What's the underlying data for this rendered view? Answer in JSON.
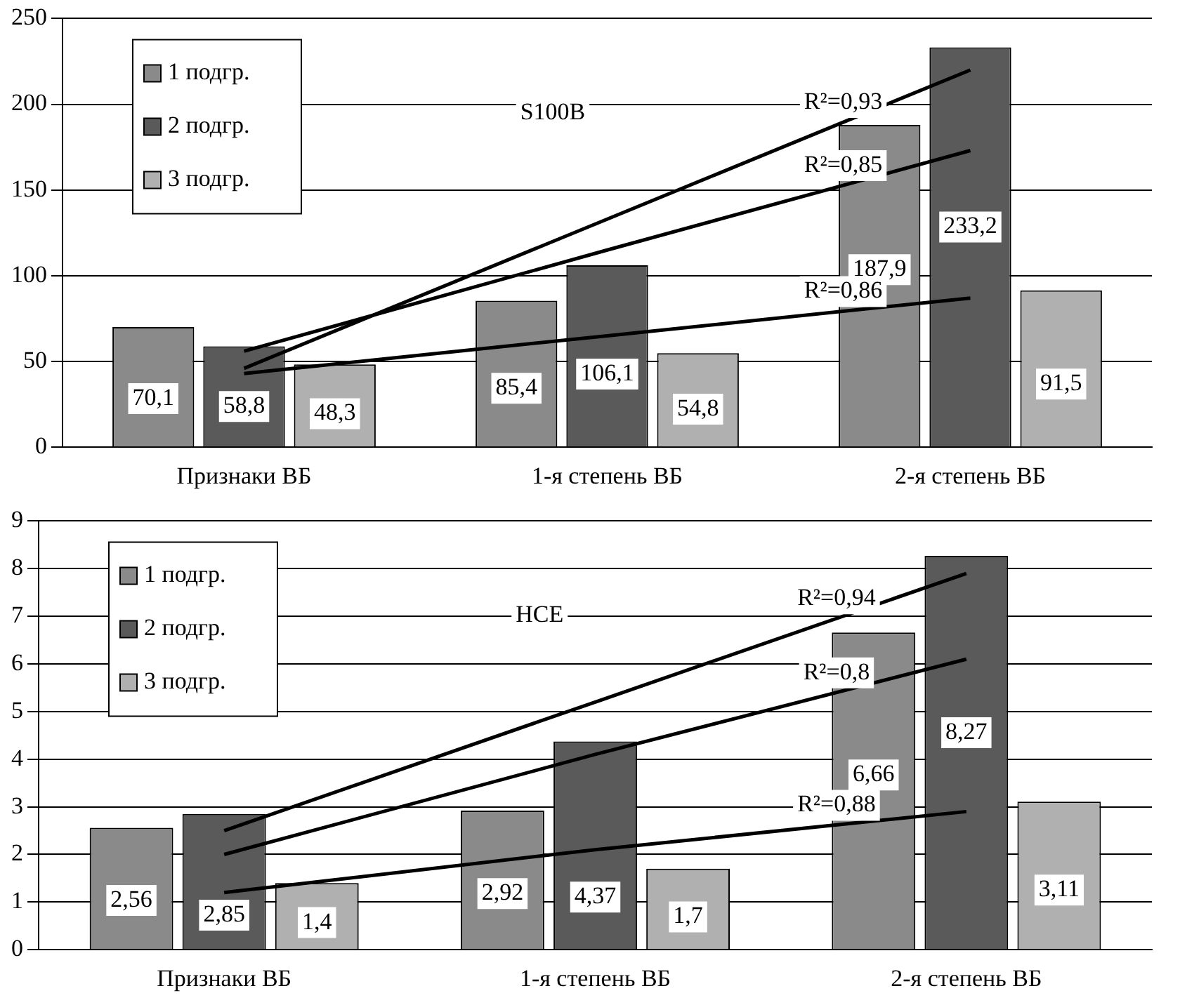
{
  "chart_data": [
    {
      "type": "bar",
      "title": "S100B",
      "categories": [
        "Признаки ВБ",
        "1-я степень ВБ",
        "2-я степень ВБ"
      ],
      "ylim": [
        0,
        250
      ],
      "yticks": [
        0,
        50,
        100,
        150,
        200,
        250
      ],
      "grid": "y",
      "legend": "top left",
      "series": [
        {
          "name": "1 подгр.",
          "color": "#8a8a8a",
          "values": [
            70.1,
            85.4,
            187.9
          ],
          "value_labels": [
            "70,1",
            "85,4",
            "187,9"
          ]
        },
        {
          "name": "2 подгр.",
          "color": "#5a5a5a",
          "values": [
            58.8,
            106.1,
            233.2
          ],
          "value_labels": [
            "58,8",
            "106,1",
            "233,2"
          ]
        },
        {
          "name": "3 подгр.",
          "color": "#b0b0b0",
          "values": [
            48.3,
            54.8,
            91.5
          ],
          "value_labels": [
            "48,3",
            "54,8",
            "91,5"
          ]
        },
        {
          "type": "line",
          "color": "#000000",
          "values": [
            46,
            133,
            220
          ]
        },
        {
          "type": "line",
          "color": "#000000",
          "values": [
            56,
            115,
            173
          ]
        },
        {
          "type": "line",
          "color": "#000000",
          "values": [
            43,
            65,
            87
          ]
        }
      ],
      "annotations": [
        "R²=0,93",
        "R²=0,85",
        "R²=0,86"
      ]
    },
    {
      "type": "bar",
      "title": "HCE",
      "categories": [
        "Признаки ВБ",
        "1-я степень ВБ",
        "2-я степень ВБ"
      ],
      "ylim": [
        0,
        9
      ],
      "yticks": [
        0,
        1,
        2,
        3,
        4,
        5,
        6,
        7,
        8,
        9
      ],
      "grid": "y",
      "legend": "top left",
      "series": [
        {
          "name": "1 подгр.",
          "color": "#8a8a8a",
          "values": [
            2.56,
            2.92,
            6.66
          ],
          "value_labels": [
            "2,56",
            "2,92",
            "6,66"
          ]
        },
        {
          "name": "2 подгр.",
          "color": "#5a5a5a",
          "values": [
            2.85,
            4.37,
            8.27
          ],
          "value_labels": [
            "2,85",
            "4,37",
            "8,27"
          ]
        },
        {
          "name": "3 подгр.",
          "color": "#b0b0b0",
          "values": [
            1.4,
            1.7,
            3.11
          ],
          "value_labels": [
            "1,4",
            "1,7",
            "3,11"
          ]
        },
        {
          "type": "line",
          "color": "#000000",
          "values": [
            2.5,
            5.2,
            7.9
          ]
        },
        {
          "type": "line",
          "color": "#000000",
          "values": [
            2.0,
            4.1,
            6.1
          ]
        },
        {
          "type": "line",
          "color": "#000000",
          "values": [
            1.2,
            2.1,
            2.9
          ]
        }
      ],
      "annotations": [
        "R²=0,94",
        "R²=0,8",
        "R²=0,88"
      ]
    }
  ]
}
